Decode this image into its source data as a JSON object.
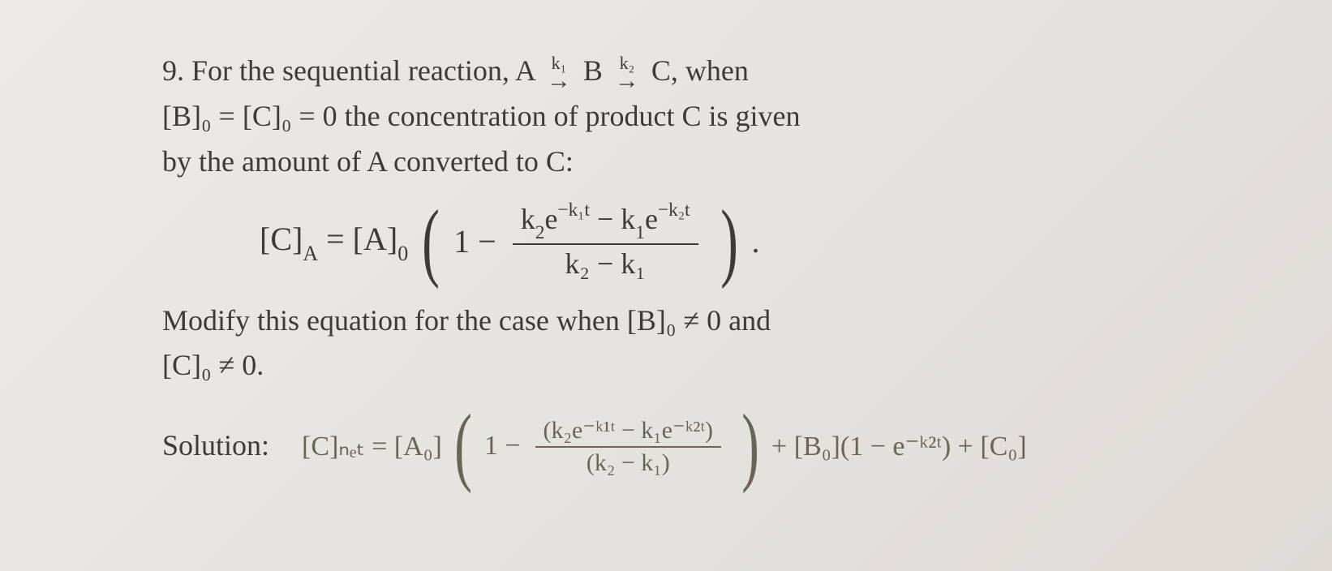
{
  "problem": {
    "number": "9.",
    "line1_a": "For the sequential reaction, A",
    "arrow1_label": "k₁",
    "arrow_symbol": "→",
    "mid_B": "B",
    "arrow2_label": "k₂",
    "end_C": "C, when",
    "line2": "[B]₀ = [C]₀ = 0 the concentration of product C is given",
    "line3": "by the amount of A converted to C:",
    "eqn": {
      "lhs": "[C]",
      "lhs_sub": "A",
      "eq": " = [A]",
      "a_sub": "0",
      "open": "(",
      "one_minus": "1 −",
      "num_part1": "k",
      "num_k2_sub": "2",
      "num_e1": "e",
      "num_exp1": "−k₁t",
      "num_minus": " − k",
      "num_k1_sub": "1",
      "num_e2": "e",
      "num_exp2": "−k₂t",
      "den_part": "k₂ − k₁",
      "close": ")",
      "period": "."
    },
    "line4": "Modify this equation for the case when [B]₀ ≠ 0 and",
    "line5": "[C]₀ ≠ 0.",
    "solution_label": "Solution:"
  },
  "handwriting": {
    "lhs": "[C]ₙₑₜ = [A₀]",
    "open": "(",
    "one_minus": "1 −",
    "num": "(k₂e⁻ᵏ¹ᵗ − k₁e⁻ᵏ²ᵗ)",
    "den": "(k₂ − k₁)",
    "close": ")",
    "plus_b": "+ [B₀](1 − e⁻ᵏ²ᵗ) + [C₀]"
  },
  "style": {
    "background": "#e8e6e3",
    "text_color": "#3c3b37",
    "hand_color": "#6a6358",
    "body_fontsize": 36,
    "eqn_fontsize": 40,
    "hand_fontsize": 34
  }
}
